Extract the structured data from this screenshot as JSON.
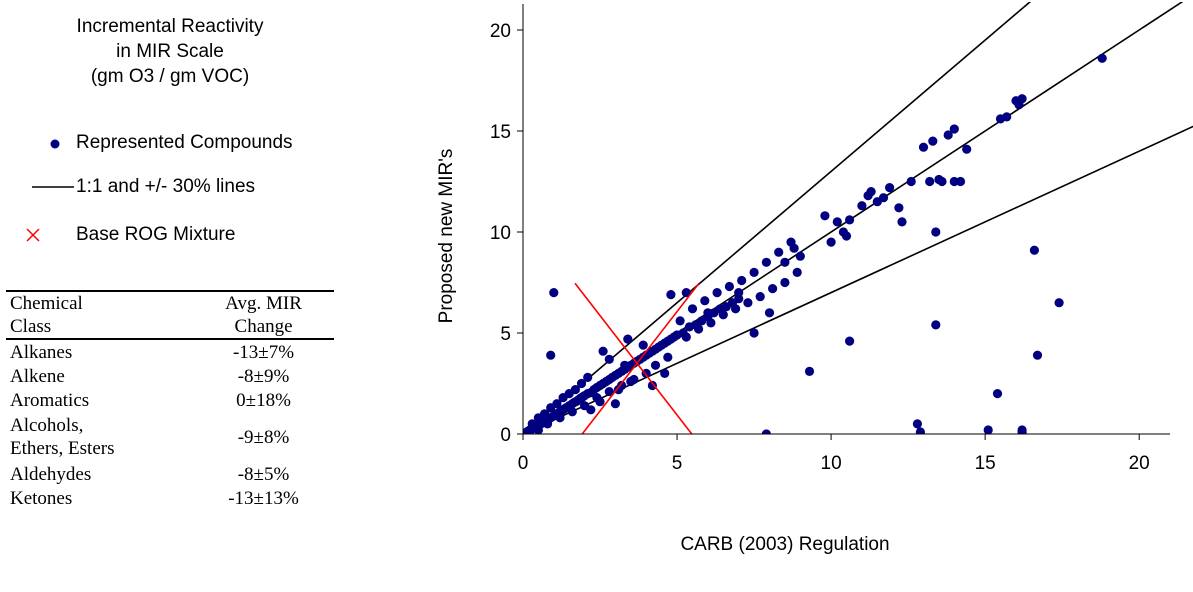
{
  "legend": {
    "title": "Incremental Reactivity\nin MIR Scale\n(gm O3 / gm VOC)",
    "items": [
      {
        "label": "Represented Compounds",
        "symbol": "dot",
        "color": "#000080"
      },
      {
        "label": "1:1 and +/- 30% lines",
        "symbol": "line",
        "color": "#000000"
      },
      {
        "label": "Base ROG Mixture",
        "symbol": "x",
        "color": "#FF0000"
      }
    ]
  },
  "table": {
    "headers": [
      [
        "Chemical",
        "Avg. MIR"
      ],
      [
        "Class",
        "Change"
      ]
    ],
    "rows": [
      {
        "class": "Alkanes",
        "change": "-13±7%"
      },
      {
        "class": "Alkene",
        "change": "-8±9%"
      },
      {
        "class": "Aromatics",
        "change": "0±18%"
      },
      {
        "class": "Alcohols,\nEthers, Esters",
        "change": "-9±8%"
      },
      {
        "class": "Aldehydes",
        "change": "-8±5%"
      },
      {
        "class": "Ketones",
        "change": "-13±13%"
      }
    ]
  },
  "chart_data": {
    "type": "scatter",
    "title": "",
    "xlabel": "CARB (2003) Regulation",
    "ylabel": "Proposed new MIR's",
    "xlim": [
      0,
      21
    ],
    "ylim": [
      0,
      20
    ],
    "xticks": [
      0,
      5,
      10,
      15,
      20
    ],
    "yticks": [
      0,
      5,
      10,
      15,
      20
    ],
    "grid": false,
    "marker_color": "#000080",
    "line_color": "#000000",
    "mixture_color": "#FF0000",
    "reference_lines": [
      {
        "slope": 1.3
      },
      {
        "slope": 1.0
      },
      {
        "slope": 0.7
      }
    ],
    "base_rog_mixture": {
      "x": 3.7,
      "y": 3.5
    },
    "series": [
      {
        "name": "Represented Compounds",
        "points": [
          [
            0.05,
            0.03
          ],
          [
            0.1,
            0.08
          ],
          [
            0.15,
            0.12
          ],
          [
            0.2,
            0.18
          ],
          [
            0.25,
            0.2
          ],
          [
            0.3,
            0.25
          ],
          [
            0.35,
            0.3
          ],
          [
            0.4,
            0.35
          ],
          [
            0.45,
            0.38
          ],
          [
            0.5,
            0.45
          ],
          [
            0.55,
            0.5
          ],
          [
            0.6,
            0.52
          ],
          [
            0.65,
            0.58
          ],
          [
            0.7,
            0.62
          ],
          [
            0.75,
            0.65
          ],
          [
            0.8,
            0.7
          ],
          [
            0.85,
            0.78
          ],
          [
            0.9,
            0.8
          ],
          [
            0.95,
            0.85
          ],
          [
            1.0,
            0.9
          ],
          [
            1.05,
            0.95
          ],
          [
            1.1,
            1.0
          ],
          [
            1.15,
            1.05
          ],
          [
            1.2,
            1.1
          ],
          [
            1.25,
            1.15
          ],
          [
            1.3,
            1.2
          ],
          [
            1.35,
            1.25
          ],
          [
            1.4,
            1.3
          ],
          [
            1.45,
            1.32
          ],
          [
            1.5,
            1.4
          ],
          [
            1.55,
            1.42
          ],
          [
            1.6,
            1.5
          ],
          [
            1.65,
            1.55
          ],
          [
            1.7,
            1.6
          ],
          [
            1.75,
            1.62
          ],
          [
            1.8,
            1.7
          ],
          [
            1.85,
            1.75
          ],
          [
            1.9,
            1.8
          ],
          [
            1.95,
            1.85
          ],
          [
            2.0,
            1.9
          ],
          [
            2.1,
            2.0
          ],
          [
            2.2,
            2.05
          ],
          [
            2.3,
            2.2
          ],
          [
            2.4,
            2.3
          ],
          [
            2.5,
            2.4
          ],
          [
            2.6,
            2.5
          ],
          [
            2.7,
            2.6
          ],
          [
            2.8,
            2.7
          ],
          [
            2.9,
            2.8
          ],
          [
            3.0,
            2.9
          ],
          [
            3.1,
            3.0
          ],
          [
            3.2,
            3.1
          ],
          [
            3.3,
            3.2
          ],
          [
            3.4,
            3.3
          ],
          [
            3.5,
            3.4
          ],
          [
            3.6,
            3.5
          ],
          [
            3.7,
            3.6
          ],
          [
            3.8,
            3.7
          ],
          [
            3.9,
            3.8
          ],
          [
            4.0,
            3.9
          ],
          [
            4.1,
            4.0
          ],
          [
            4.2,
            4.1
          ],
          [
            4.3,
            4.2
          ],
          [
            4.4,
            4.3
          ],
          [
            4.5,
            4.4
          ],
          [
            4.6,
            4.5
          ],
          [
            4.7,
            4.6
          ],
          [
            4.8,
            4.7
          ],
          [
            4.9,
            4.8
          ],
          [
            5.0,
            4.9
          ],
          [
            0.3,
            0.5
          ],
          [
            0.5,
            0.8
          ],
          [
            0.7,
            1.0
          ],
          [
            0.9,
            1.3
          ],
          [
            1.1,
            1.5
          ],
          [
            1.3,
            1.8
          ],
          [
            1.5,
            2.0
          ],
          [
            1.7,
            2.2
          ],
          [
            1.9,
            2.5
          ],
          [
            2.1,
            2.8
          ],
          [
            0.5,
            0.2
          ],
          [
            0.8,
            0.5
          ],
          [
            1.2,
            0.8
          ],
          [
            1.6,
            1.1
          ],
          [
            2.0,
            1.4
          ],
          [
            2.4,
            1.8
          ],
          [
            2.8,
            2.1
          ],
          [
            3.2,
            2.4
          ],
          [
            3.6,
            2.7
          ],
          [
            4.0,
            3.0
          ],
          [
            1.0,
            7.0
          ],
          [
            0.9,
            3.9
          ],
          [
            2.6,
            4.1
          ],
          [
            3.0,
            1.5
          ],
          [
            3.4,
            4.7
          ],
          [
            4.2,
            2.4
          ],
          [
            4.6,
            3.0
          ],
          [
            3.3,
            3.4
          ],
          [
            3.9,
            4.4
          ],
          [
            2.8,
            3.7
          ],
          [
            5.2,
            5.0
          ],
          [
            5.4,
            5.3
          ],
          [
            5.6,
            5.4
          ],
          [
            5.8,
            5.6
          ],
          [
            6.0,
            5.8
          ],
          [
            6.2,
            6.0
          ],
          [
            6.4,
            6.2
          ],
          [
            6.6,
            6.3
          ],
          [
            6.8,
            6.5
          ],
          [
            7.0,
            6.7
          ],
          [
            5.3,
            4.8
          ],
          [
            5.7,
            5.2
          ],
          [
            6.1,
            5.5
          ],
          [
            6.5,
            5.9
          ],
          [
            6.9,
            6.2
          ],
          [
            7.3,
            6.5
          ],
          [
            7.7,
            6.8
          ],
          [
            8.1,
            7.2
          ],
          [
            8.5,
            7.5
          ],
          [
            8.9,
            8.0
          ],
          [
            5.1,
            5.6
          ],
          [
            5.5,
            6.2
          ],
          [
            5.9,
            6.6
          ],
          [
            6.3,
            7.0
          ],
          [
            6.7,
            7.3
          ],
          [
            7.1,
            7.6
          ],
          [
            7.5,
            8.0
          ],
          [
            7.9,
            8.5
          ],
          [
            8.3,
            9.0
          ],
          [
            8.7,
            9.5
          ],
          [
            4.8,
            6.9
          ],
          [
            5.3,
            7.0
          ],
          [
            6.0,
            6.0
          ],
          [
            7.0,
            7.0
          ],
          [
            7.5,
            5.0
          ],
          [
            8.0,
            6.0
          ],
          [
            8.5,
            8.5
          ],
          [
            8.8,
            9.2
          ],
          [
            9.0,
            8.8
          ],
          [
            9.3,
            3.1
          ],
          [
            7.9,
            0.0
          ],
          [
            9.8,
            10.8
          ],
          [
            10.0,
            9.5
          ],
          [
            10.2,
            10.5
          ],
          [
            10.4,
            10.0
          ],
          [
            10.5,
            9.8
          ],
          [
            10.6,
            10.6
          ],
          [
            10.6,
            4.6
          ],
          [
            11.2,
            11.8
          ],
          [
            11.3,
            12.0
          ],
          [
            11.0,
            11.3
          ],
          [
            11.5,
            11.5
          ],
          [
            11.7,
            11.7
          ],
          [
            11.9,
            12.2
          ],
          [
            12.2,
            11.2
          ],
          [
            12.3,
            10.5
          ],
          [
            12.6,
            12.5
          ],
          [
            12.8,
            0.5
          ],
          [
            12.9,
            0.1
          ],
          [
            13.0,
            14.2
          ],
          [
            13.2,
            12.5
          ],
          [
            13.3,
            14.5
          ],
          [
            13.4,
            10.0
          ],
          [
            13.4,
            5.4
          ],
          [
            13.5,
            12.6
          ],
          [
            13.6,
            12.5
          ],
          [
            13.8,
            14.8
          ],
          [
            14.0,
            15.1
          ],
          [
            14.0,
            12.5
          ],
          [
            14.2,
            12.5
          ],
          [
            14.4,
            14.1
          ],
          [
            15.1,
            0.2
          ],
          [
            15.4,
            2.0
          ],
          [
            15.7,
            15.7
          ],
          [
            16.0,
            16.5
          ],
          [
            16.1,
            16.3
          ],
          [
            16.2,
            0.2
          ],
          [
            16.2,
            0.1
          ],
          [
            16.6,
            9.1
          ],
          [
            16.7,
            3.9
          ],
          [
            17.4,
            6.5
          ],
          [
            18.8,
            18.6
          ],
          [
            16.2,
            16.6
          ],
          [
            15.5,
            15.6
          ],
          [
            2.2,
            1.2
          ],
          [
            2.5,
            1.6
          ],
          [
            3.1,
            2.2
          ],
          [
            3.5,
            2.6
          ],
          [
            4.3,
            3.4
          ],
          [
            4.7,
            3.8
          ]
        ]
      }
    ]
  }
}
